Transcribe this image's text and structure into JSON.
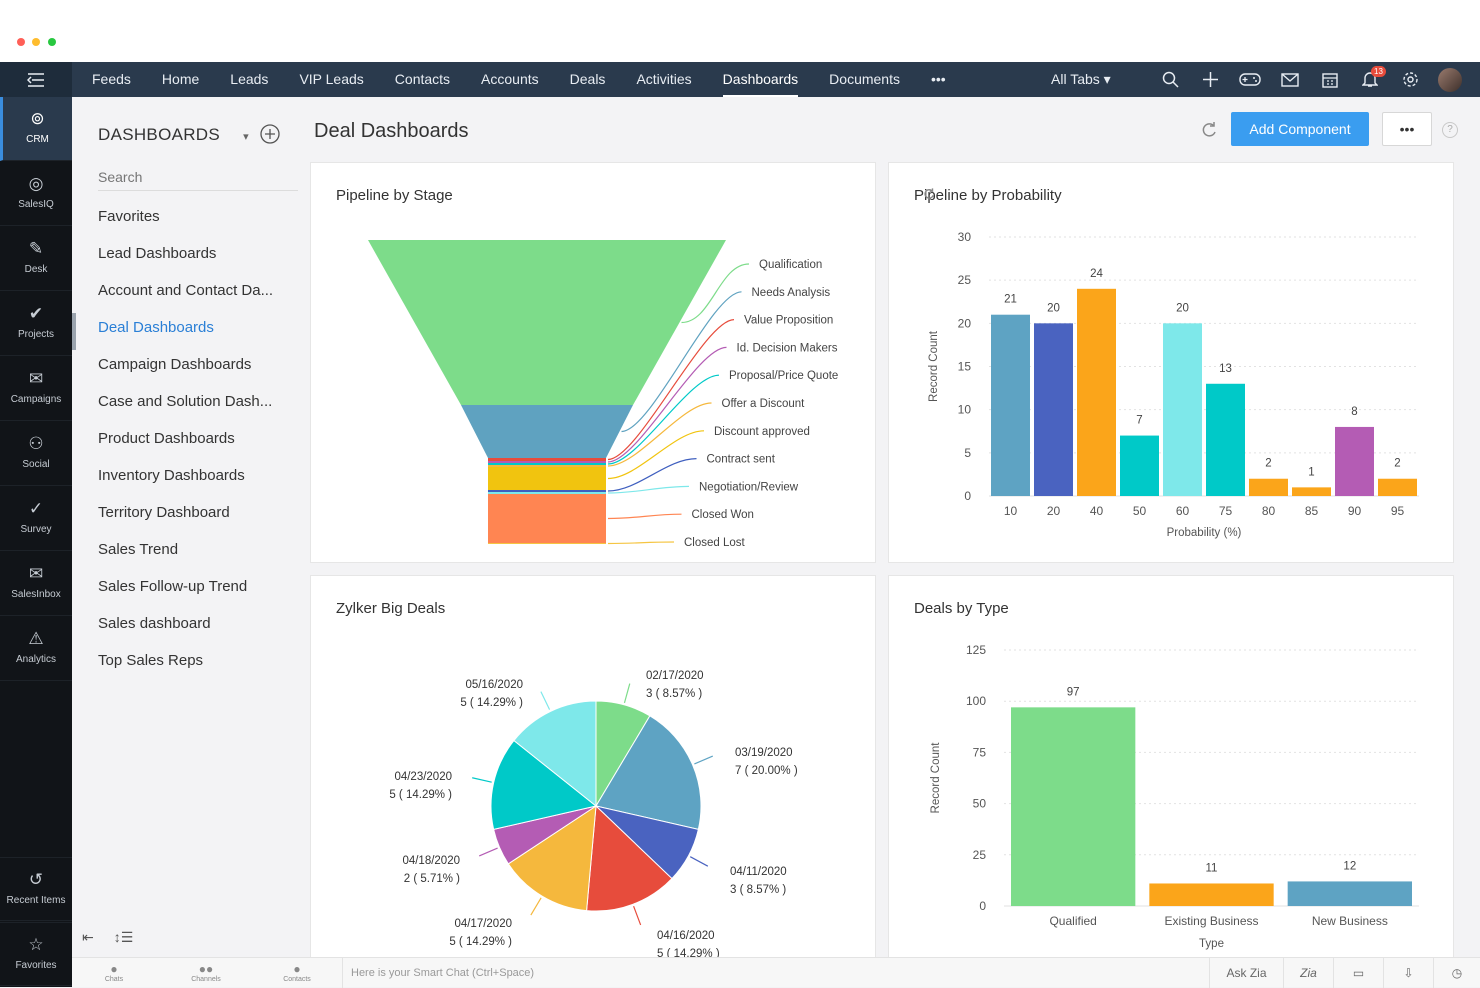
{
  "window": {
    "dots": [
      "#ff5f57",
      "#febc2e",
      "#28c840"
    ]
  },
  "topnav": {
    "tabs": [
      "Feeds",
      "Home",
      "Leads",
      "VIP Leads",
      "Contacts",
      "Accounts",
      "Deals",
      "Activities",
      "Dashboards",
      "Documents",
      "•••"
    ],
    "active_tab": "Dashboards",
    "all_tabs_label": "All Tabs",
    "notification_count": "13",
    "icons": [
      "search-icon",
      "plus-icon",
      "gamepad-icon",
      "mail-icon",
      "calendar-icon",
      "bell-icon",
      "gear-icon",
      "avatar"
    ]
  },
  "rail": {
    "items": [
      {
        "label": "CRM",
        "icon": "crm-icon"
      },
      {
        "label": "SalesIQ",
        "icon": "salesiq-icon"
      },
      {
        "label": "Desk",
        "icon": "desk-icon"
      },
      {
        "label": "Projects",
        "icon": "projects-icon"
      },
      {
        "label": "Campaigns",
        "icon": "campaigns-icon"
      },
      {
        "label": "Social",
        "icon": "social-icon"
      },
      {
        "label": "Survey",
        "icon": "survey-icon"
      },
      {
        "label": "SalesInbox",
        "icon": "salesinbox-icon"
      },
      {
        "label": "Analytics",
        "icon": "analytics-icon"
      }
    ],
    "bottom": [
      {
        "label": "Recent Items",
        "icon": "history-icon"
      },
      {
        "label": "Favorites",
        "icon": "star-icon"
      }
    ]
  },
  "sidebar": {
    "title": "DASHBOARDS",
    "search_placeholder": "Search",
    "items": [
      "Favorites",
      "Lead Dashboards",
      "Account and Contact Da...",
      "Deal Dashboards",
      "Campaign Dashboards",
      "Case and Solution Dash...",
      "Product Dashboards",
      "Inventory Dashboards",
      "Territory Dashboard",
      "Sales Trend",
      "Sales Follow-up Trend",
      "Sales dashboard",
      "Top Sales Reps"
    ],
    "active_item": "Deal Dashboards"
  },
  "header": {
    "title": "Deal Dashboards",
    "add_component_label": "Add Component",
    "more_label": "•••",
    "help_label": "?"
  },
  "cards": {
    "pipeline_stage_title": "Pipeline by Stage",
    "pipeline_probability_title": "Pipeline by Probability",
    "big_deals_title": "Zylker Big Deals",
    "deals_type_title": "Deals by Type"
  },
  "chart_data": [
    {
      "type": "funnel",
      "title": "Pipeline by Stage",
      "stages": [
        "Qualification",
        "Needs Analysis",
        "Value Proposition",
        "Id. Decision Makers",
        "Proposal/Price Quote",
        "Offer a Discount",
        "Discount approved",
        "Contract sent",
        "Negotiation/Review",
        "Closed Won",
        "Closed Lost"
      ],
      "colors": [
        "#7ddc8a",
        "#5fa2c0",
        "#e74c3c",
        "#b45cb4",
        "#00c9c8",
        "#f5b83d",
        "#f1c40f",
        "#3f5fbf",
        "#7ee8ea",
        "#ff8552",
        "#f5c542"
      ]
    },
    {
      "type": "bar",
      "title": "Pipeline by Probability",
      "categories": [
        "10",
        "20",
        "40",
        "50",
        "60",
        "75",
        "80",
        "85",
        "90",
        "95"
      ],
      "values": [
        21,
        20,
        24,
        7,
        20,
        13,
        2,
        1,
        8,
        2
      ],
      "colors": [
        "#5ea3c3",
        "#4a63c0",
        "#fba51a",
        "#00c9c8",
        "#7ee8ea",
        "#00c9c8",
        "#fba51a",
        "#fba51a",
        "#b45cb4",
        "#fba51a"
      ],
      "xlabel": "Probability (%)",
      "ylabel": "Record Count",
      "ylim": [
        0,
        30
      ],
      "yticks": [
        0,
        5,
        10,
        15,
        20,
        25,
        30
      ]
    },
    {
      "type": "pie",
      "title": "Zylker Big Deals",
      "slices": [
        {
          "label": "02/17/2020",
          "value": 3,
          "pct": "8.57%",
          "color": "#7ddc8a"
        },
        {
          "label": "03/19/2020",
          "value": 7,
          "pct": "20.00%",
          "color": "#5ea3c3"
        },
        {
          "label": "04/11/2020",
          "value": 3,
          "pct": "8.57%",
          "color": "#4a63c0"
        },
        {
          "label": "04/16/2020",
          "value": 5,
          "pct": "14.29%",
          "color": "#e74c3c"
        },
        {
          "label": "04/17/2020",
          "value": 5,
          "pct": "14.29%",
          "color": "#f5b83d"
        },
        {
          "label": "04/18/2020",
          "value": 2,
          "pct": "5.71%",
          "color": "#b45cb4"
        },
        {
          "label": "04/23/2020",
          "value": 5,
          "pct": "14.29%",
          "color": "#00c9c8"
        },
        {
          "label": "05/16/2020",
          "value": 5,
          "pct": "14.29%",
          "color": "#7ee8ea"
        }
      ]
    },
    {
      "type": "bar",
      "title": "Deals by Type",
      "categories": [
        "Qualified",
        "Existing Business",
        "New Business"
      ],
      "values": [
        97,
        11,
        12
      ],
      "colors": [
        "#7ddc8a",
        "#fba51a",
        "#5ea3c3"
      ],
      "xlabel": "Type",
      "ylabel": "Record Count",
      "ylim": [
        0,
        125
      ],
      "yticks": [
        0,
        25,
        50,
        75,
        100,
        125
      ]
    }
  ],
  "bottombar": {
    "tabs": [
      "Chats",
      "Channels",
      "Contacts"
    ],
    "smart_chat_placeholder": "Here is your Smart Chat (Ctrl+Space)",
    "ask_zia": "Ask Zia",
    "zia_label": "Zia"
  }
}
